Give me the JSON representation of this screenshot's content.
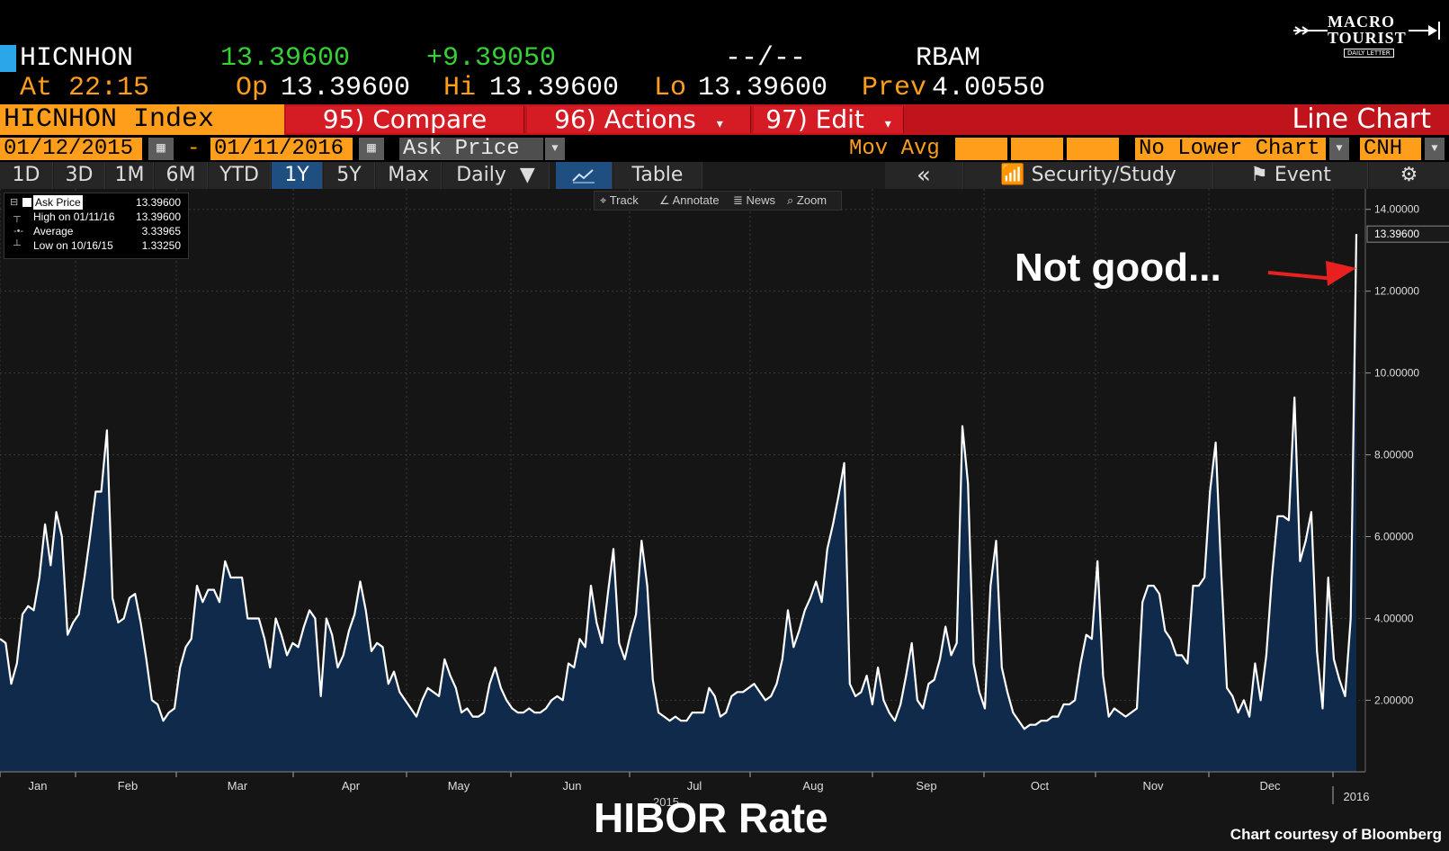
{
  "logo": {
    "line1": "MACRO",
    "line2": "TOURIST",
    "line3": "DAILY LETTER"
  },
  "quote": {
    "ticker": "HICNHON",
    "last": "13.39600",
    "change": "+9.39050",
    "bidask": "--/--",
    "source": "RBAM",
    "at_label": "At",
    "time": "22:15",
    "op_label": "Op",
    "op": "13.39600",
    "hi_label": "Hi",
    "hi": "13.39600",
    "lo_label": "Lo",
    "lo": "13.39600",
    "prev_label": "Prev",
    "prev": "4.00550"
  },
  "toolbar": {
    "index_label": "HICNHON Index",
    "compare": "95) Compare",
    "actions": "96) Actions",
    "edit": "97) Edit",
    "chart_type": "Line Chart"
  },
  "dates": {
    "start": "01/12/2015",
    "sep": "-",
    "end": "01/11/2016",
    "field": "Ask Price",
    "mov_avg": "Mov Avg",
    "lower_chart": "No Lower Chart",
    "currency": "CNH"
  },
  "periods": [
    "1D",
    "3D",
    "1M",
    "6M",
    "YTD",
    "1Y",
    "5Y",
    "Max"
  ],
  "active_period": "1Y",
  "frequency": "Daily",
  "table_label": "Table",
  "nav": {
    "back": "«",
    "security": "Security/Study",
    "event": "Event",
    "gear": "⚙"
  },
  "mini_toolbar": {
    "track": "Track",
    "annotate": "Annotate",
    "news": "News",
    "zoom": "Zoom"
  },
  "legend": [
    {
      "name": "Ask Price",
      "value": "13.39600"
    },
    {
      "name": "High on 01/11/16",
      "value": "13.39600"
    },
    {
      "name": "Average",
      "value": "3.33965"
    },
    {
      "name": "Low on 10/16/15",
      "value": "1.33250"
    }
  ],
  "annotation": "Not good...",
  "bottom_title": "HIBOR Rate",
  "courtesy": "Chart courtesy of Bloomberg",
  "colors": {
    "orange": "#ff9e1a",
    "green": "#35d135",
    "red": "#c0141c",
    "area": "#0f2a4a",
    "line": "#ffffff",
    "arrow": "#e82020"
  },
  "chart_data": {
    "type": "area",
    "title": "HIBOR Rate",
    "x_labels": [
      "Jan",
      "Feb",
      "Mar",
      "Apr",
      "May",
      "Jun",
      "Jul",
      "Aug",
      "Sep",
      "Oct",
      "Nov",
      "Dec",
      "2016"
    ],
    "year_labels": [
      "2015",
      "2016"
    ],
    "y_ticks": [
      "2.00000",
      "4.00000",
      "6.00000",
      "8.00000",
      "10.00000",
      "12.00000",
      "14.00000"
    ],
    "ylim": [
      0.25,
      14.5
    ],
    "last_value_label": "13.39600",
    "grid": true,
    "series": [
      {
        "name": "Ask Price",
        "values": [
          3.5,
          3.4,
          2.4,
          2.9,
          4.1,
          4.3,
          4.2,
          5.0,
          6.3,
          5.3,
          6.6,
          6.0,
          3.6,
          3.9,
          4.1,
          5.0,
          6.0,
          7.1,
          7.1,
          8.6,
          4.5,
          3.9,
          4.0,
          4.5,
          4.6,
          3.9,
          3.0,
          2.0,
          1.9,
          1.5,
          1.7,
          1.8,
          2.8,
          3.3,
          3.5,
          4.8,
          4.4,
          4.7,
          4.7,
          4.4,
          5.4,
          5.0,
          5.0,
          5.0,
          4.0,
          4.0,
          4.0,
          3.5,
          2.8,
          4.0,
          3.6,
          3.1,
          3.4,
          3.3,
          3.8,
          4.2,
          4.0,
          2.1,
          4.0,
          3.6,
          2.8,
          3.1,
          3.7,
          4.1,
          4.9,
          4.2,
          3.2,
          3.4,
          3.3,
          2.4,
          2.7,
          2.2,
          2.0,
          1.8,
          1.6,
          2.0,
          2.3,
          2.2,
          2.1,
          3.0,
          2.6,
          2.3,
          1.7,
          1.8,
          1.6,
          1.6,
          1.7,
          2.4,
          2.8,
          2.3,
          2.0,
          1.8,
          1.7,
          1.7,
          1.8,
          1.7,
          1.7,
          1.8,
          2.0,
          2.1,
          2.0,
          2.9,
          2.8,
          3.5,
          3.3,
          4.8,
          3.9,
          3.4,
          4.6,
          5.7,
          3.4,
          3.0,
          3.6,
          4.1,
          5.9,
          4.8,
          2.5,
          1.7,
          1.6,
          1.5,
          1.6,
          1.5,
          1.5,
          1.7,
          1.7,
          1.7,
          2.3,
          2.1,
          1.6,
          1.7,
          2.1,
          2.2,
          2.2,
          2.3,
          2.4,
          2.2,
          2.0,
          2.1,
          2.4,
          3.0,
          4.2,
          3.3,
          3.7,
          4.2,
          4.5,
          4.9,
          4.4,
          5.7,
          6.3,
          7.0,
          7.8,
          2.4,
          2.1,
          2.2,
          2.6,
          1.9,
          2.8,
          2.0,
          1.7,
          1.5,
          1.9,
          2.6,
          3.4,
          2.0,
          1.8,
          2.4,
          2.5,
          3.0,
          3.8,
          3.1,
          3.4,
          8.7,
          7.3,
          2.9,
          2.2,
          1.8,
          4.8,
          5.9,
          2.8,
          2.2,
          1.7,
          1.5,
          1.3,
          1.4,
          1.4,
          1.5,
          1.5,
          1.6,
          1.6,
          1.9,
          1.9,
          2.0,
          2.9,
          3.6,
          3.5,
          5.4,
          2.6,
          1.6,
          1.8,
          1.7,
          1.6,
          1.7,
          1.8,
          4.4,
          4.8,
          4.8,
          4.6,
          3.7,
          3.5,
          3.1,
          3.1,
          2.9,
          4.8,
          4.8,
          5.0,
          7.1,
          8.3,
          5.1,
          2.3,
          2.1,
          1.7,
          2.0,
          1.6,
          2.9,
          2.0,
          3.1,
          5.0,
          6.5,
          6.5,
          6.4,
          9.4,
          5.4,
          5.9,
          6.6,
          3.2,
          1.8,
          5.0,
          3.0,
          2.5,
          2.1,
          4.0,
          13.396
        ]
      }
    ]
  }
}
